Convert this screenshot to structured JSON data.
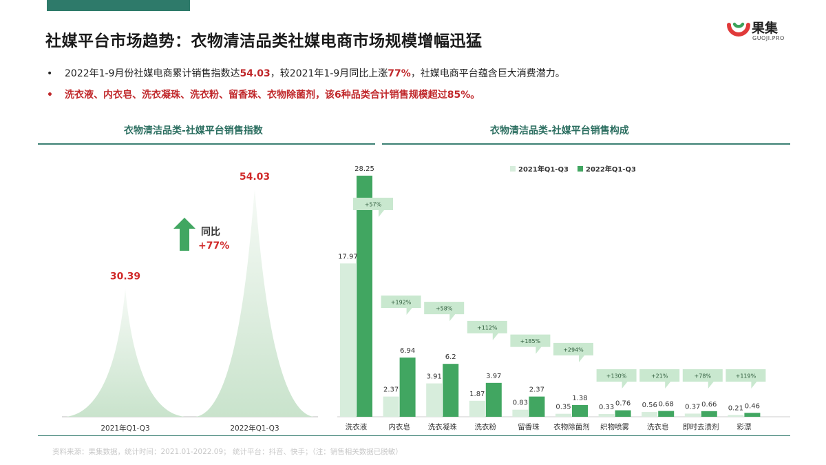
{
  "title": "社媒平台市场趋势：衣物清洁品类社媒电商市场规模增幅迅猛",
  "logo": {
    "name": "果集",
    "sub": "GUOJI.PRO"
  },
  "bullets": {
    "b1_pre": "2022年1-9月份社媒电商累计销售指数达",
    "b1_val1": "54.03",
    "b1_mid": "，较2021年1-9月同比上涨",
    "b1_val2": "77%",
    "b1_post": "，社媒电商平台蕴含巨大消费潜力。",
    "b2": "洗衣液、内衣皂、洗衣凝珠、洗衣粉、留香珠、衣物除菌剂，该6种品类合计销售规模超过85%。"
  },
  "left_section_title": "衣物清洁品类-社媒平台销售指数",
  "right_section_title": "衣物清洁品类-社媒平台销售构成",
  "growth": {
    "label": "同比",
    "value": "+77%"
  },
  "source": "资料来源：果集数据，统计时间：2021.01-2022.09；   统计平台：抖音、快手；（注：销售相关数据已脱敏）",
  "colors": {
    "light": "#d7eddc",
    "dark": "#41a661",
    "red": "#d02a2a",
    "teal": "#2b6e60",
    "callout": "#c9e8cf"
  },
  "chart_data": [
    {
      "type": "area",
      "categories": [
        "2021年Q1-Q3",
        "2022年Q1-Q3"
      ],
      "values": [
        30.39,
        54.03
      ],
      "title": "衣物清洁品类-社媒平台销售指数"
    },
    {
      "type": "bar",
      "title": "衣物清洁品类-社媒平台销售构成",
      "categories": [
        "洗衣液",
        "内衣皂",
        "洗衣凝珠",
        "洗衣粉",
        "留香珠",
        "衣物除菌剂",
        "织物喷雾",
        "洗衣皂",
        "即时去渍剂",
        "彩漂"
      ],
      "series": [
        {
          "name": "2021年Q1-Q3",
          "values": [
            17.97,
            2.37,
            3.91,
            1.87,
            0.83,
            0.35,
            0.33,
            0.56,
            0.37,
            0.21
          ]
        },
        {
          "name": "2022年Q1-Q3",
          "values": [
            28.25,
            6.94,
            6.2,
            3.97,
            2.37,
            1.38,
            0.76,
            0.68,
            0.66,
            0.46
          ]
        }
      ],
      "growth_labels": [
        "+57%",
        "+192%",
        "+58%",
        "+112%",
        "+185%",
        "+294%",
        "+130%",
        "+21%",
        "+78%",
        "+119%"
      ],
      "legend": "top"
    }
  ]
}
